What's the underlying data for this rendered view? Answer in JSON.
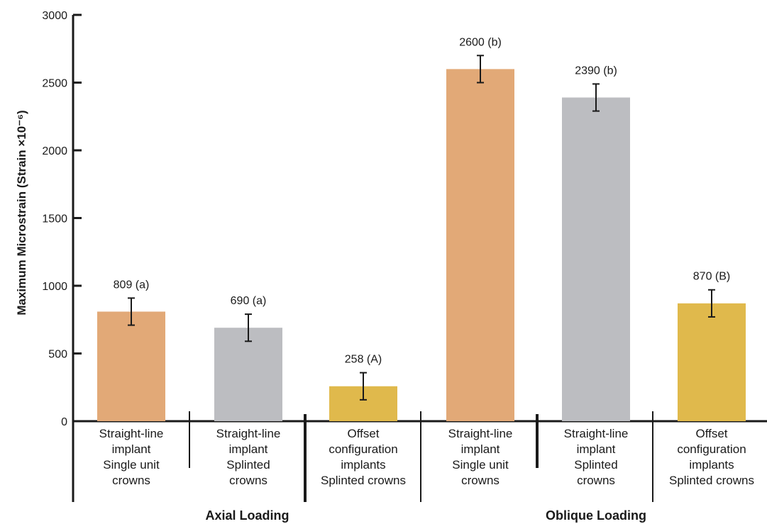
{
  "chart_data": {
    "type": "bar",
    "ylabel": "Maximum Microstrain (Strain ×10⁻⁶)",
    "ylim": [
      0,
      3000
    ],
    "yticks": [
      0,
      500,
      1000,
      1500,
      2000,
      2500,
      3000
    ],
    "grid": false,
    "groups": [
      {
        "name": "Axial Loading",
        "bars": [
          {
            "category": [
              "Straight-line",
              "implant",
              "Single unit",
              "crowns"
            ],
            "value": 809,
            "error": 100,
            "label": "809 (a)",
            "color": "#e2a977"
          },
          {
            "category": [
              "Straight-line",
              "implant",
              "Splinted",
              "crowns"
            ],
            "value": 690,
            "error": 100,
            "label": "690 (a)",
            "color": "#bcbdc1"
          },
          {
            "category": [
              "Offset",
              "configuration",
              "implants",
              "Splinted crowns"
            ],
            "value": 258,
            "error": 100,
            "label": "258 (A)",
            "color": "#e0b94c"
          }
        ]
      },
      {
        "name": "Oblique Loading",
        "bars": [
          {
            "category": [
              "Straight-line",
              "implant",
              "Single unit",
              "crowns"
            ],
            "value": 2600,
            "error": 100,
            "label": "2600 (b)",
            "color": "#e2a977"
          },
          {
            "category": [
              "Straight-line",
              "implant",
              "Splinted",
              "crowns"
            ],
            "value": 2390,
            "error": 100,
            "label": "2390 (b)",
            "color": "#bcbdc1"
          },
          {
            "category": [
              "Offset",
              "configuration",
              "implants",
              "Splinted crowns"
            ],
            "value": 870,
            "error": 100,
            "label": "870 (B)",
            "color": "#e0b94c"
          }
        ]
      }
    ]
  }
}
